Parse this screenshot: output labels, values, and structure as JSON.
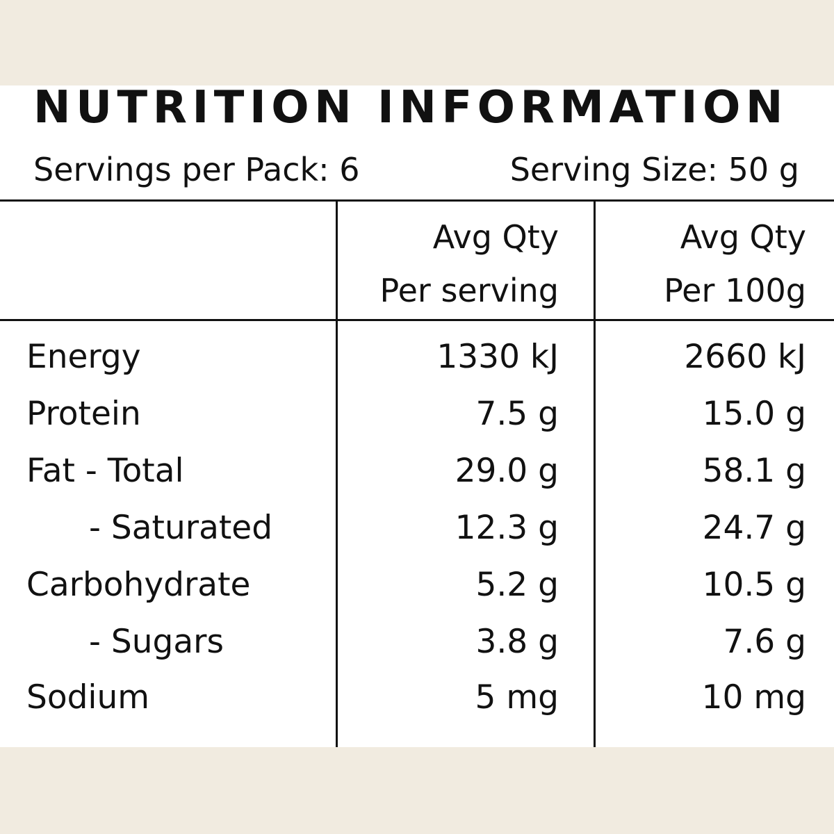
{
  "title": "NUTRITION INFORMATION",
  "servings_per_pack": "Servings per Pack: 6",
  "serving_size": "Serving Size: 50 g",
  "columns": {
    "per_serving": {
      "line1": "Avg Qty",
      "line2": "Per serving"
    },
    "per_100g": {
      "line1": "Avg Qty",
      "line2": "Per 100g"
    }
  },
  "rows": [
    {
      "label": "Energy",
      "per_serving": "1330 kJ",
      "per_100g": "2660 kJ"
    },
    {
      "label": "Protein",
      "per_serving": "7.5 g",
      "per_100g": "15.0 g"
    },
    {
      "label": "Fat - Total",
      "per_serving": "29.0 g",
      "per_100g": "58.1 g"
    },
    {
      "label": "- Saturated",
      "per_serving": "12.3 g",
      "per_100g": "24.7 g"
    },
    {
      "label": "Carbohydrate",
      "per_serving": "5.2 g",
      "per_100g": "10.5 g"
    },
    {
      "label": "- Sugars",
      "per_serving": "3.8 g",
      "per_100g": "7.6 g"
    },
    {
      "label": "Sodium",
      "per_serving": "5 mg",
      "per_100g": "10 mg"
    }
  ],
  "colors": {
    "background": "#f1ebe0",
    "panel": "#ffffff",
    "ink": "#111111"
  }
}
